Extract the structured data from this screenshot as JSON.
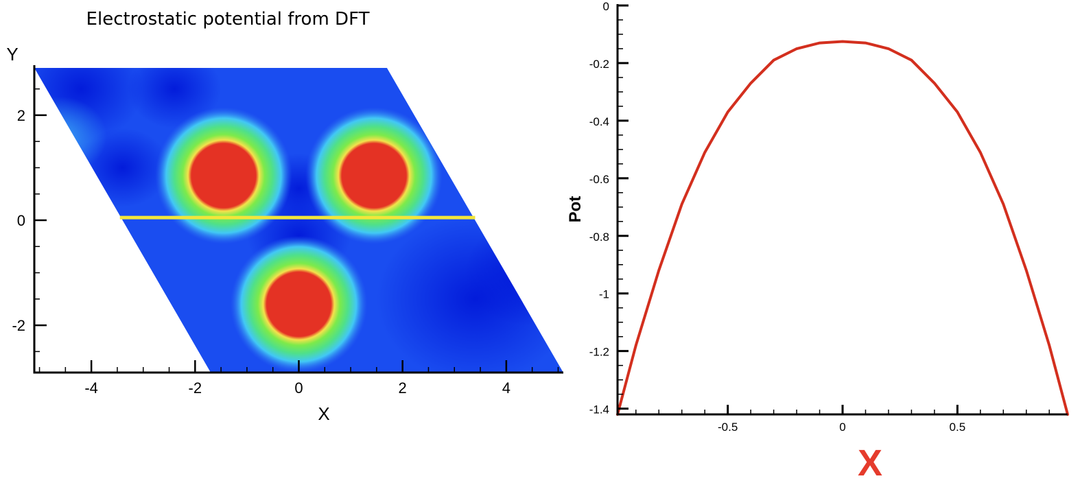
{
  "chart_data": [
    {
      "type": "heatmap",
      "title": "Electrostatic potential from DFT",
      "xlabel": "X",
      "ylabel": "Y",
      "xlim": [
        -5.1,
        5.1
      ],
      "ylim": [
        -2.9,
        2.9
      ],
      "xticks": [
        "-4",
        "-2",
        "0",
        "2",
        "4"
      ],
      "xtick_values": [
        -4,
        -2,
        0,
        2,
        4
      ],
      "yticks": [
        "2",
        "0",
        "-2"
      ],
      "ytick_values": [
        2,
        0,
        -2
      ],
      "domain_corners": [
        [
          -5.1,
          2.9
        ],
        [
          1.7,
          2.9
        ],
        [
          5.1,
          -2.9
        ],
        [
          -1.7,
          -2.9
        ]
      ],
      "atoms": [
        {
          "x": -1.45,
          "y": 0.85
        },
        {
          "x": 1.45,
          "y": 0.85
        },
        {
          "x": 0.0,
          "y": -1.6
        }
      ],
      "line_cut": {
        "y": 0.05,
        "x_start": -3.45,
        "x_end": 3.4,
        "color": "#f2e63a"
      },
      "colors": {
        "low": "#0a2ee8",
        "mid_low": "#42c8f5",
        "mid": "#7dea4a",
        "mid_high": "#f6e04a",
        "high": "#e43224"
      }
    },
    {
      "type": "line",
      "xlabel": "X",
      "ylabel": "Pot",
      "xlim": [
        -0.98,
        0.98
      ],
      "ylim": [
        -1.42,
        0.0
      ],
      "xticks": [
        "-0.5",
        "0",
        "0.5"
      ],
      "xtick_values": [
        -0.5,
        0,
        0.5
      ],
      "yticks": [
        "0",
        "-0.2",
        "-0.4",
        "-0.6",
        "-0.8",
        "-1",
        "-1.2",
        "-1.4"
      ],
      "ytick_values": [
        0,
        -0.2,
        -0.4,
        -0.6,
        -0.8,
        -1.0,
        -1.2,
        -1.4
      ],
      "series": [
        {
          "color": "#d32f1e",
          "x": [
            -0.98,
            -0.9,
            -0.8,
            -0.7,
            -0.6,
            -0.5,
            -0.4,
            -0.3,
            -0.2,
            -0.1,
            0.0,
            0.1,
            0.2,
            0.3,
            0.4,
            0.5,
            0.6,
            0.7,
            0.8,
            0.9,
            0.98
          ],
          "y": [
            -1.42,
            -1.18,
            -0.92,
            -0.69,
            -0.51,
            -0.37,
            -0.27,
            -0.19,
            -0.15,
            -0.13,
            -0.125,
            -0.13,
            -0.15,
            -0.19,
            -0.27,
            -0.37,
            -0.51,
            -0.69,
            -0.92,
            -1.18,
            -1.42
          ]
        }
      ],
      "colors": {
        "xlabel": "#e53b2c"
      }
    }
  ]
}
